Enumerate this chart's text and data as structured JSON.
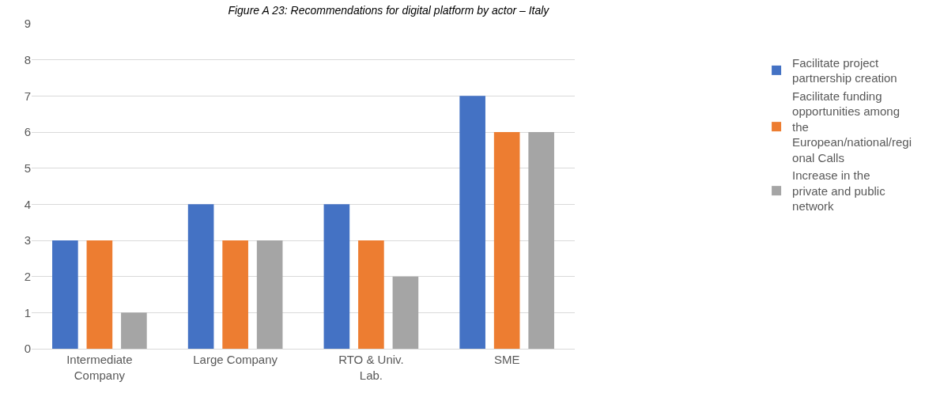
{
  "chart_data": {
    "type": "bar",
    "title": "Figure A 23: Recommendations for digital platform by actor – Italy",
    "categories": [
      "Intermediate Company",
      "Large Company",
      "RTO & Univ. Lab.",
      "SME"
    ],
    "series": [
      {
        "name": "Facilitate project partnership creation",
        "color": "#4472c4",
        "values": [
          3,
          4,
          4,
          7
        ]
      },
      {
        "name": "Facilitate funding opportunities among the European/national/regional Calls",
        "color": "#ed7d31",
        "values": [
          3,
          3,
          3,
          6
        ]
      },
      {
        "name": "Increase in the private and public network",
        "color": "#a5a5a5",
        "values": [
          1,
          3,
          2,
          6
        ]
      }
    ],
    "ylim": [
      0,
      9
    ],
    "yticks": [
      0,
      1,
      2,
      3,
      4,
      5,
      6,
      7,
      8,
      9
    ],
    "grid": "y",
    "legend": "right"
  }
}
